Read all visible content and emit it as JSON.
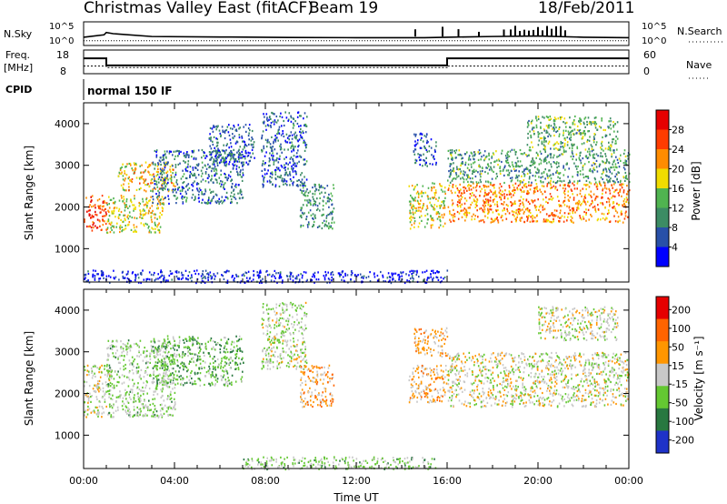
{
  "header": {
    "title": "Christmas Valley East (fitACF)",
    "beam": "Beam 19",
    "date": "18/Feb/2011"
  },
  "colors": {
    "background": "#ffffff",
    "axis": "#000000",
    "power_scale": [
      "#0000ff",
      "#2850a8",
      "#3c8c64",
      "#50b450",
      "#f0dc00",
      "#ff8c00",
      "#ff3c00",
      "#e60000"
    ],
    "velocity_scale": [
      "#1e32c8",
      "#287840",
      "#64c832",
      "#c8c8c8",
      "#ff9600",
      "#ff6400",
      "#e60000"
    ],
    "ground_scatter": "#bebebe"
  },
  "chart_data": [
    {
      "type": "line",
      "panel": "noise",
      "ylabel": "N.Sky",
      "ylabel_right": "N.Search",
      "y_ticks_left": [
        "10^5",
        "10^0"
      ],
      "y_ticks_right": [
        "10^5",
        "10^0"
      ],
      "x": [
        0,
        0.9,
        1,
        1.3,
        3,
        6,
        9,
        12,
        15,
        16,
        18,
        20,
        22,
        24
      ],
      "series": [
        {
          "name": "N.Sky",
          "style": "solid",
          "values": [
            0.35,
            0.45,
            0.55,
            0.5,
            0.38,
            0.36,
            0.34,
            0.33,
            0.33,
            0.35,
            0.38,
            0.4,
            0.35,
            0.33
          ]
        },
        {
          "name": "N.Search",
          "style": "dotted",
          "values": [
            0.2,
            0.2,
            0.2,
            0.2,
            0.2,
            0.2,
            0.2,
            0.2,
            0.2,
            0.2,
            0.2,
            0.2,
            0.2,
            0.2
          ]
        }
      ],
      "spikes_hours": [
        14.6,
        15.8,
        16.5,
        17.4,
        18.5,
        18.8,
        19.0,
        19.2,
        19.4,
        19.6,
        19.8,
        20.0,
        20.2,
        20.4,
        20.6,
        20.8,
        21.0,
        21.2
      ]
    },
    {
      "type": "line",
      "panel": "frequency",
      "ylabel": "Freq. [MHz]",
      "ylabel_right": "Nave",
      "y_ticks_left": [
        "18",
        "8"
      ],
      "y_ticks_right": [
        "60",
        "0"
      ],
      "ylim": [
        8,
        18
      ],
      "x": [
        0,
        1,
        1,
        16,
        16,
        24
      ],
      "series": [
        {
          "name": "Freq.",
          "style": "solid",
          "values": [
            14.5,
            14.5,
            11.5,
            11.5,
            14.5,
            14.5
          ]
        },
        {
          "name": "Nave",
          "style": "dotted",
          "values": [
            11.2,
            11.2,
            10.6,
            10.6,
            11.2,
            11.2
          ]
        }
      ]
    },
    {
      "type": "table",
      "panel": "cpid",
      "label": "CPID",
      "value": "normal 150 IF"
    },
    {
      "type": "heatmap",
      "panel": "power",
      "ylabel": "Slant Range [km]",
      "xlim": [
        0,
        24
      ],
      "ylim": [
        200,
        4500
      ],
      "y_ticks": [
        1000,
        2000,
        3000,
        4000
      ],
      "colorbar_label": "Power [dB]",
      "colorbar_ticks": [
        "4",
        "8",
        "12",
        "16",
        "20",
        "24",
        "28"
      ],
      "colorbar_range": [
        0,
        32
      ],
      "bands": [
        {
          "t0": 0.0,
          "t1": 1.0,
          "r0": 1450,
          "r1": 2300,
          "level": 0.8
        },
        {
          "t0": 1.0,
          "t1": 3.5,
          "r0": 1400,
          "r1": 2300,
          "level": 0.55
        },
        {
          "t0": 1.5,
          "t1": 4.0,
          "r0": 2400,
          "r1": 3100,
          "level": 0.6
        },
        {
          "t0": 3.0,
          "t1": 7.0,
          "r0": 2100,
          "r1": 3400,
          "level": 0.25
        },
        {
          "t0": 5.5,
          "t1": 7.5,
          "r0": 3000,
          "r1": 4000,
          "level": 0.2
        },
        {
          "t0": 7.8,
          "t1": 9.8,
          "r0": 2500,
          "r1": 4300,
          "level": 0.22
        },
        {
          "t0": 9.5,
          "t1": 11.0,
          "r0": 1500,
          "r1": 2600,
          "level": 0.3
        },
        {
          "t0": 14.3,
          "t1": 15.9,
          "r0": 1500,
          "r1": 2600,
          "level": 0.55
        },
        {
          "t0": 14.5,
          "t1": 15.5,
          "r0": 3000,
          "r1": 3800,
          "level": 0.2
        },
        {
          "t0": 16.0,
          "t1": 24.0,
          "r0": 1650,
          "r1": 2600,
          "level": 0.7
        },
        {
          "t0": 16.0,
          "t1": 24.0,
          "r0": 2600,
          "r1": 3400,
          "level": 0.35
        },
        {
          "t0": 19.5,
          "t1": 23.5,
          "r0": 3400,
          "r1": 4200,
          "level": 0.4
        },
        {
          "t0": 0.0,
          "t1": 16.0,
          "r0": 200,
          "r1": 500,
          "level": 0.1
        }
      ]
    },
    {
      "type": "heatmap",
      "panel": "velocity",
      "xlabel": "Time UT",
      "ylabel": "Slant Range [km]",
      "xlim": [
        0,
        24
      ],
      "ylim": [
        200,
        4500
      ],
      "x_ticks": [
        "00:00",
        "04:00",
        "08:00",
        "12:00",
        "16:00",
        "20:00",
        "00:00"
      ],
      "y_ticks": [
        1000,
        2000,
        3000,
        4000
      ],
      "colorbar_label": "Velocity [m s⁻¹]",
      "colorbar_ticks": [
        "200",
        "100",
        "50",
        "15",
        "-15",
        "-50",
        "-100",
        "-200"
      ],
      "colorbar_range": [
        -250,
        250
      ],
      "bands": [
        {
          "t0": 0.0,
          "t1": 1.2,
          "r0": 1450,
          "r1": 2700,
          "level": 0.5
        },
        {
          "t0": 1.0,
          "t1": 4.0,
          "r0": 1450,
          "r1": 3300,
          "level": 0.42
        },
        {
          "t0": 3.0,
          "t1": 7.0,
          "r0": 2200,
          "r1": 3400,
          "level": 0.35
        },
        {
          "t0": 7.8,
          "t1": 9.8,
          "r0": 2600,
          "r1": 4200,
          "level": 0.45
        },
        {
          "t0": 9.5,
          "t1": 11.0,
          "r0": 1700,
          "r1": 2700,
          "level": 0.62
        },
        {
          "t0": 14.3,
          "t1": 16.0,
          "r0": 1800,
          "r1": 2700,
          "level": 0.62
        },
        {
          "t0": 14.5,
          "t1": 16.0,
          "r0": 2900,
          "r1": 3600,
          "level": 0.62
        },
        {
          "t0": 16.0,
          "t1": 24.0,
          "r0": 1700,
          "r1": 3000,
          "level": 0.5
        },
        {
          "t0": 20.0,
          "t1": 23.5,
          "r0": 3300,
          "r1": 4100,
          "level": 0.5
        },
        {
          "t0": 7.0,
          "t1": 15.5,
          "r0": 200,
          "r1": 500,
          "level": 0.4
        }
      ]
    }
  ]
}
